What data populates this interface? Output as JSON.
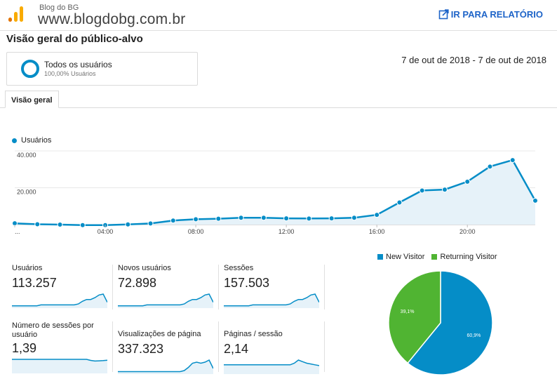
{
  "header": {
    "account_subtitle": "Blog do BG",
    "account_url": "www.blogdobg.com.br",
    "report_link_label": "IR PARA RELATÓRIO"
  },
  "page": {
    "title": "Visão geral do público-alvo",
    "date_range": "7 de out de 2018 - 7 de out de 2018"
  },
  "segment": {
    "name": "Todos os usuários",
    "percent": "100,00% Usuários"
  },
  "tabs": [
    {
      "label": "Visão geral",
      "active": true
    }
  ],
  "colors": {
    "primary_blue": "#058dc7",
    "returning_green": "#50b432",
    "link_blue": "#1e64c8",
    "logo_orange": "#f9ab00",
    "logo_dark_orange": "#e37400"
  },
  "chart_data": [
    {
      "type": "area",
      "series": [
        {
          "name": "Usuários",
          "values": [
            700,
            200,
            0,
            -300,
            -300,
            100,
            600,
            2200,
            2900,
            3200,
            3700,
            3700,
            3400,
            3300,
            3400,
            3700,
            5300,
            12000,
            18500,
            19000,
            23300,
            31500,
            35000,
            13000
          ]
        }
      ],
      "x_tick_labels": [
        "...",
        "04:00",
        "08:00",
        "12:00",
        "16:00",
        "20:00"
      ],
      "y_tick_labels": [
        "40.000",
        "20.000"
      ],
      "ylim": [
        0,
        40000
      ],
      "grid": true,
      "legend": "top-left"
    },
    {
      "type": "pie",
      "categories": [
        "New Visitor",
        "Returning Visitor"
      ],
      "values": [
        60.9,
        39.1
      ],
      "slice_labels": [
        "60,9%",
        "39,1%"
      ],
      "legend": "top"
    }
  ],
  "metrics": [
    {
      "label": "Usuários",
      "value": "113.257",
      "spark": [
        1,
        1,
        1,
        1,
        1,
        1,
        1,
        2,
        2,
        2,
        2,
        2,
        2,
        2,
        2,
        2,
        3,
        6,
        8,
        8,
        10,
        13,
        14,
        5
      ]
    },
    {
      "label": "Novos usuários",
      "value": "72.898",
      "spark": [
        1,
        1,
        1,
        1,
        1,
        1,
        1,
        2,
        2,
        2,
        2,
        2,
        2,
        2,
        2,
        2,
        3,
        6,
        8,
        8,
        10,
        13,
        14,
        5
      ]
    },
    {
      "label": "Sessões",
      "value": "157.503",
      "spark": [
        1,
        1,
        1,
        1,
        1,
        1,
        1,
        2,
        2,
        2,
        2,
        2,
        2,
        2,
        2,
        2,
        3,
        6,
        8,
        8,
        10,
        13,
        14,
        5
      ]
    },
    {
      "label": "Número de sessões por usuário",
      "value": "1,39",
      "spark": [
        6,
        6,
        6,
        6,
        6,
        6,
        6,
        6,
        6,
        6,
        6,
        6,
        6,
        6,
        6,
        6,
        6,
        6,
        6,
        5.5,
        5.2,
        5.3,
        5.4,
        5.6
      ]
    },
    {
      "label": "Visualizações de página",
      "value": "337.323",
      "spark": [
        1,
        1,
        1,
        1,
        1,
        1,
        1,
        1,
        1,
        1,
        1,
        1,
        1,
        1,
        1,
        1,
        2,
        5,
        9,
        10,
        9,
        10,
        12,
        4
      ]
    },
    {
      "label": "Páginas / sessão",
      "value": "2,14",
      "spark": [
        5,
        5,
        5,
        5,
        5,
        5,
        5,
        5,
        5,
        5,
        5,
        5,
        5,
        5,
        5,
        5,
        5,
        6,
        8,
        7,
        6,
        5.5,
        5,
        4.5
      ]
    }
  ]
}
